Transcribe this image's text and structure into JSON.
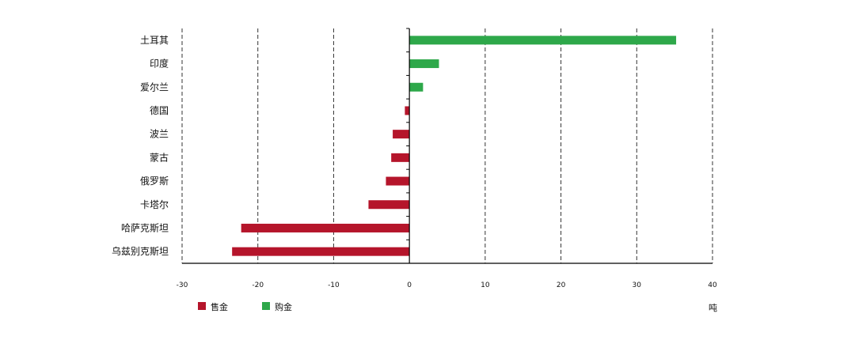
{
  "chart_data": {
    "type": "bar",
    "orientation": "horizontal",
    "categories": [
      "土耳其",
      "印度",
      "爱尔兰",
      "德国",
      "波兰",
      "蒙古",
      "俄罗斯",
      "卡塔尔",
      "哈萨克斯坦",
      "乌兹别克斯坦"
    ],
    "values": [
      35.2,
      3.9,
      1.8,
      -0.6,
      -2.2,
      -2.4,
      -3.1,
      -5.4,
      -22.2,
      -23.4
    ],
    "xlim": [
      -30,
      40
    ],
    "xticks": [
      -30,
      -20,
      -10,
      0,
      10,
      20,
      30,
      40
    ],
    "xlabel": "",
    "unit": "吨",
    "grid": "vertical-dashed",
    "legend": {
      "placement": "bottom-left",
      "items": [
        {
          "label": "售金",
          "color": "#b5152b"
        },
        {
          "label": "购金",
          "color": "#2ea84a"
        }
      ]
    },
    "colors": {
      "negative": "#b5152b",
      "positive": "#2ea84a",
      "grid": "#333333",
      "axis": "#000000"
    }
  }
}
